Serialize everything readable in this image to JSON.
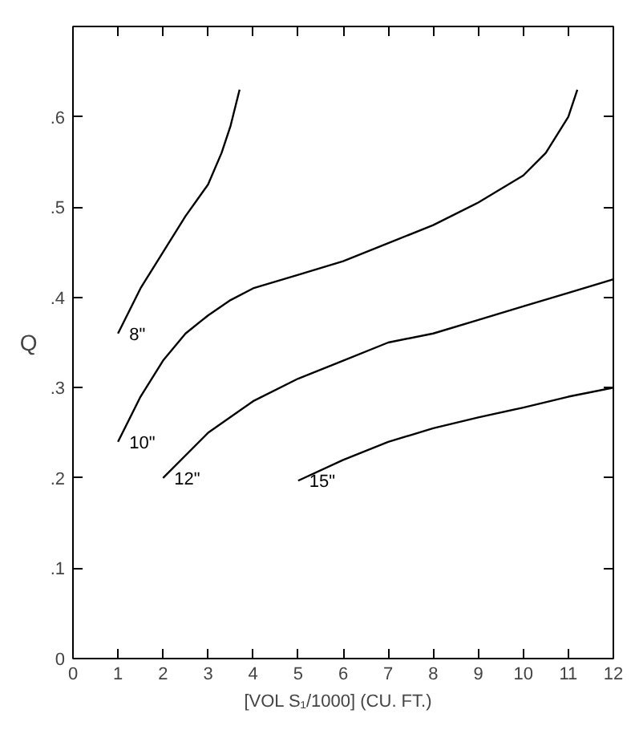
{
  "chart_data": {
    "type": "line",
    "xlabel": "[VOL S₁/1000]   (CU. FT.)",
    "ylabel": "Q",
    "xlim": [
      0,
      12
    ],
    "ylim": [
      0,
      0.7
    ],
    "xticks": [
      0,
      1,
      2,
      3,
      4,
      5,
      6,
      7,
      8,
      9,
      10,
      11,
      12
    ],
    "yticks": [
      0,
      {
        "value": 0.1,
        "label": ".1"
      },
      {
        "value": 0.2,
        "label": ".2"
      },
      {
        "value": 0.3,
        "label": ".3"
      },
      {
        "value": 0.4,
        "label": ".4"
      },
      {
        "value": 0.5,
        "label": ".5"
      },
      {
        "value": 0.6,
        "label": ".6"
      }
    ],
    "grid": false,
    "legend": false,
    "marker": "none",
    "line_style": "solid",
    "series": [
      {
        "name": "8\"",
        "color": "#000000",
        "x": [
          1,
          1.5,
          2,
          2.5,
          3,
          3.3,
          3.5,
          3.7
        ],
        "values": [
          0.36,
          0.41,
          0.45,
          0.49,
          0.525,
          0.56,
          0.59,
          0.63
        ]
      },
      {
        "name": "10\"",
        "color": "#000000",
        "x": [
          1,
          1.5,
          2,
          2.5,
          3,
          3.5,
          4,
          5,
          6,
          7,
          8,
          9,
          10,
          10.5,
          11,
          11.2
        ],
        "values": [
          0.24,
          0.29,
          0.33,
          0.36,
          0.38,
          0.397,
          0.41,
          0.425,
          0.44,
          0.46,
          0.48,
          0.505,
          0.535,
          0.56,
          0.6,
          0.63
        ]
      },
      {
        "name": "12\"",
        "color": "#000000",
        "x": [
          2,
          3,
          4,
          5,
          6,
          7,
          8,
          9,
          10,
          11,
          12
        ],
        "values": [
          0.2,
          0.25,
          0.285,
          0.31,
          0.33,
          0.35,
          0.36,
          0.375,
          0.39,
          0.405,
          0.42
        ]
      },
      {
        "name": "15\"",
        "color": "#000000",
        "x": [
          5,
          6,
          7,
          8,
          9,
          10,
          11,
          12
        ],
        "values": [
          0.197,
          0.22,
          0.24,
          0.255,
          0.267,
          0.278,
          0.29,
          0.3
        ]
      }
    ]
  }
}
